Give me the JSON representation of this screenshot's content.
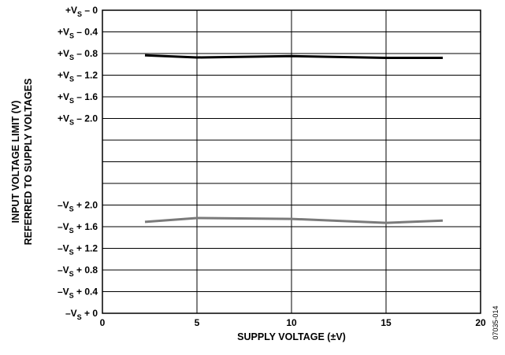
{
  "chart_data": {
    "type": "line",
    "title": "",
    "xlabel": "SUPPLY VOLTAGE (±V)",
    "ylabel_lines": [
      "INPUT VOLTAGE LIMIT (V)",
      "REFERRED TO SUPPLY VOLTAGES"
    ],
    "xlim": [
      0,
      20
    ],
    "x_ticks": [
      0,
      5,
      10,
      15,
      20
    ],
    "x_tick_labels": [
      "0",
      "5",
      "10",
      "15",
      "20"
    ],
    "y_rows": 14,
    "grid": true,
    "legend": "none",
    "y_tick_labels": [
      {
        "row": 0,
        "base": "+V",
        "sub": "S",
        "rest": " – 0"
      },
      {
        "row": 1,
        "base": "+V",
        "sub": "S",
        "rest": " – 0.4"
      },
      {
        "row": 2,
        "base": "+V",
        "sub": "S",
        "rest": " – 0.8"
      },
      {
        "row": 3,
        "base": "+V",
        "sub": "S",
        "rest": " – 1.2"
      },
      {
        "row": 4,
        "base": "+V",
        "sub": "S",
        "rest": " – 1.6"
      },
      {
        "row": 5,
        "base": "+V",
        "sub": "S",
        "rest": " – 2.0"
      },
      {
        "row": 9,
        "base": "–V",
        "sub": "S",
        "rest": " + 2.0"
      },
      {
        "row": 10,
        "base": "–V",
        "sub": "S",
        "rest": " + 1.6"
      },
      {
        "row": 11,
        "base": "–V",
        "sub": "S",
        "rest": " + 1.2"
      },
      {
        "row": 12,
        "base": "–V",
        "sub": "S",
        "rest": " + 0.8"
      },
      {
        "row": 13,
        "base": "–V",
        "sub": "S",
        "rest": " + 0.4"
      },
      {
        "row": 14,
        "base": "–V",
        "sub": "S",
        "rest": " + 0"
      }
    ],
    "series": [
      {
        "color": "#000000",
        "rows": true,
        "points": [
          [
            2.25,
            2.08
          ],
          [
            5,
            2.18
          ],
          [
            10,
            2.12
          ],
          [
            15,
            2.2
          ],
          [
            18,
            2.2
          ]
        ]
      },
      {
        "color": "#7a7a7a",
        "rows": true,
        "points": [
          [
            2.25,
            9.78
          ],
          [
            5,
            9.6
          ],
          [
            10,
            9.64
          ],
          [
            15,
            9.82
          ],
          [
            18,
            9.72
          ]
        ]
      }
    ],
    "figure_id": "07035-014"
  }
}
